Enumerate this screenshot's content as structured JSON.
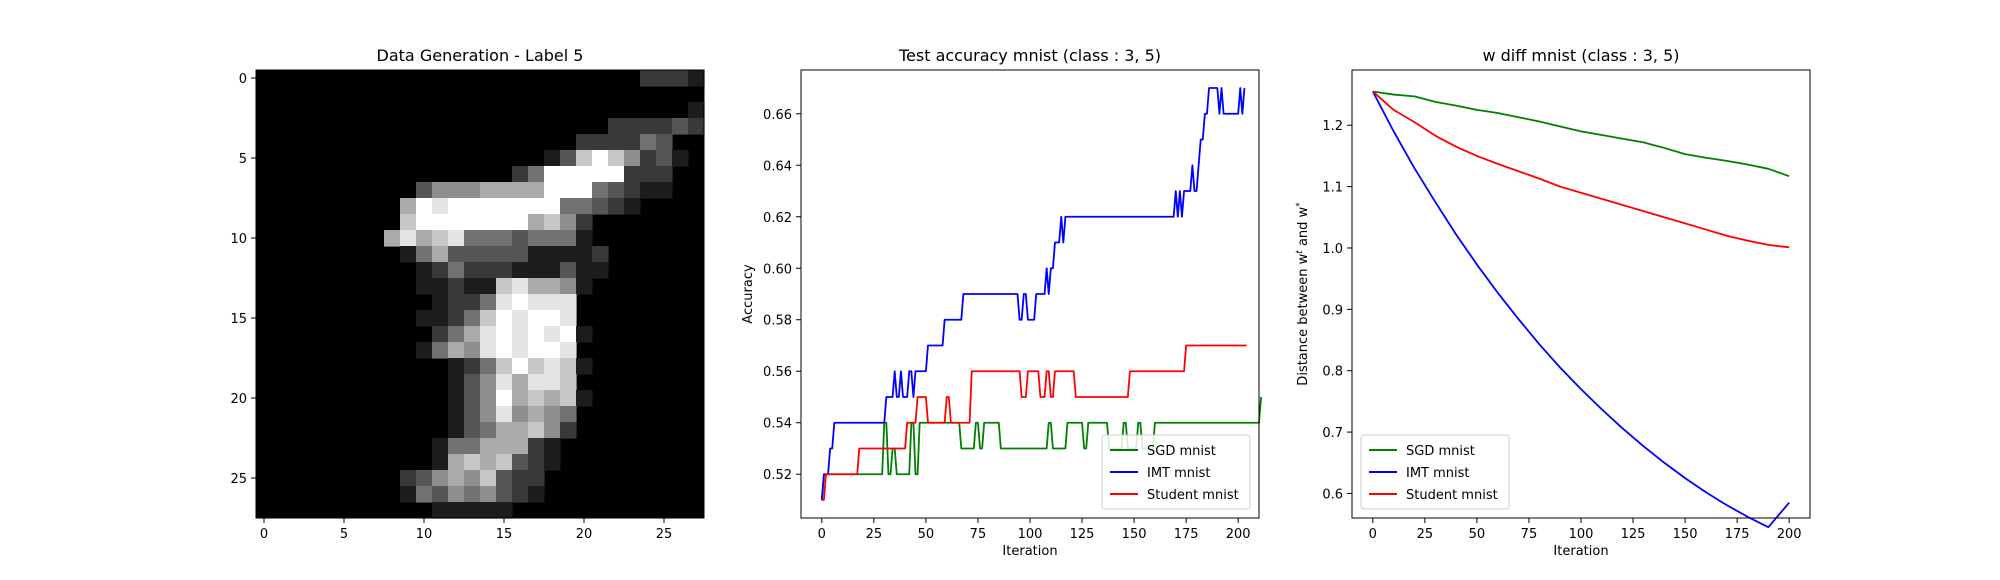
{
  "chart_data": [
    {
      "type": "heatmap",
      "title": "Data Generation - Label 5",
      "colormap": "gray",
      "xlim": [
        -0.5,
        27.5
      ],
      "ylim": [
        27.5,
        -0.5
      ],
      "xticks": [
        0,
        5,
        10,
        15,
        20,
        25
      ],
      "yticks": [
        0,
        5,
        10,
        15,
        20,
        25
      ],
      "image": [
        "0000000000000000000000002221",
        "0000000000000000000000000000",
        "0000000000000000000000000001",
        "0000000000000000000000222232",
        "0000000000000000000022224300",
        "0000000000000000001379752310",
        "0000000000000000249999922200",
        "0000000000355566669994321100",
        "0000000006989999999443210000",
        "0000000007999999967520000000",
        "0000000068678444344410000000",
        "0000000001463333311112000000",
        "0000000000124222111311000000",
        "0000000000112117866510000000",
        "0000000000012248988800000000",
        "0000000000112479899800000000",
        "0000000000024689898910000000",
        "0000000000146589899800000000",
        "0000000000001247978710000000",
        "0000000000001358688700000000",
        "0000000000001359676710000000",
        "0000000000001358565400000000",
        "0000000000001346675200000000",
        "0000000000014466621000000000",
        "0000000000016767321000000000",
        "0000000002356573220000000000",
        "0000000001435453210000000000",
        "0000000000011111000000000000"
      ]
    },
    {
      "type": "line",
      "title": "Test accuracy mnist (class : 3, 5)",
      "xlabel": "Iteration",
      "ylabel": "Accuracy",
      "xlim": [
        -10,
        210
      ],
      "ylim": [
        0.503,
        0.677
      ],
      "xticks": [
        0,
        25,
        50,
        75,
        100,
        125,
        150,
        175,
        200
      ],
      "yticks": [
        0.52,
        0.54,
        0.56,
        0.58,
        0.6,
        0.62,
        0.64,
        0.66
      ],
      "legend": "lower-right",
      "series": [
        {
          "name": "SGD mnist",
          "color": "#008000",
          "values": [
            0.51,
            0.52,
            0.52,
            0.52,
            0.52,
            0.52,
            0.52,
            0.52,
            0.52,
            0.52,
            0.52,
            0.52,
            0.52,
            0.52,
            0.52,
            0.52,
            0.52,
            0.52,
            0.52,
            0.52,
            0.52,
            0.52,
            0.52,
            0.52,
            0.52,
            0.52,
            0.52,
            0.52,
            0.52,
            0.52,
            0.54,
            0.54,
            0.52,
            0.52,
            0.53,
            0.53,
            0.52,
            0.52,
            0.52,
            0.52,
            0.52,
            0.52,
            0.52,
            0.54,
            0.54,
            0.52,
            0.52,
            0.54,
            0.54,
            0.54,
            0.54,
            0.54,
            0.54,
            0.54,
            0.54,
            0.54,
            0.54,
            0.54,
            0.54,
            0.54,
            0.54,
            0.54,
            0.54,
            0.54,
            0.54,
            0.54,
            0.54,
            0.53,
            0.53,
            0.53,
            0.53,
            0.53,
            0.53,
            0.53,
            0.54,
            0.54,
            0.53,
            0.53,
            0.54,
            0.54,
            0.54,
            0.54,
            0.54,
            0.54,
            0.54,
            0.54,
            0.53,
            0.53,
            0.53,
            0.53,
            0.53,
            0.53,
            0.53,
            0.53,
            0.53,
            0.53,
            0.53,
            0.53,
            0.53,
            0.53,
            0.53,
            0.53,
            0.53,
            0.53,
            0.53,
            0.53,
            0.53,
            0.53,
            0.53,
            0.54,
            0.54,
            0.53,
            0.53,
            0.53,
            0.53,
            0.53,
            0.53,
            0.53,
            0.54,
            0.54,
            0.54,
            0.54,
            0.54,
            0.54,
            0.54,
            0.54,
            0.53,
            0.53,
            0.54,
            0.54,
            0.54,
            0.54,
            0.54,
            0.54,
            0.54,
            0.54,
            0.54,
            0.54,
            0.53,
            0.53,
            0.53,
            0.53,
            0.53,
            0.53,
            0.53,
            0.54,
            0.54,
            0.53,
            0.53,
            0.53,
            0.53,
            0.53,
            0.54,
            0.54,
            0.53,
            0.53,
            0.53,
            0.53,
            0.53,
            0.53,
            0.54,
            0.54,
            0.54,
            0.54,
            0.54,
            0.54,
            0.54,
            0.54,
            0.54,
            0.54,
            0.54,
            0.54,
            0.54,
            0.54,
            0.54,
            0.54,
            0.54,
            0.54,
            0.54,
            0.54,
            0.54,
            0.54,
            0.54,
            0.54,
            0.54,
            0.54,
            0.54,
            0.54,
            0.54,
            0.54,
            0.54,
            0.54,
            0.54,
            0.54,
            0.54,
            0.54,
            0.54,
            0.54,
            0.54,
            0.54,
            0.54,
            0.54,
            0.54,
            0.54,
            0.54,
            0.54,
            0.54,
            0.54,
            0.54,
            0.54,
            0.54,
            0.55
          ]
        },
        {
          "name": "IMT mnist",
          "color": "#0000ff",
          "values": [
            0.51,
            0.52,
            0.52,
            0.52,
            0.53,
            0.53,
            0.54,
            0.54,
            0.54,
            0.54,
            0.54,
            0.54,
            0.54,
            0.54,
            0.54,
            0.54,
            0.54,
            0.54,
            0.54,
            0.54,
            0.54,
            0.54,
            0.54,
            0.54,
            0.54,
            0.54,
            0.54,
            0.54,
            0.54,
            0.54,
            0.54,
            0.55,
            0.55,
            0.55,
            0.55,
            0.56,
            0.55,
            0.55,
            0.56,
            0.55,
            0.55,
            0.55,
            0.56,
            0.56,
            0.55,
            0.56,
            0.56,
            0.56,
            0.56,
            0.56,
            0.56,
            0.57,
            0.57,
            0.57,
            0.57,
            0.57,
            0.57,
            0.57,
            0.57,
            0.58,
            0.58,
            0.58,
            0.58,
            0.58,
            0.58,
            0.58,
            0.58,
            0.58,
            0.59,
            0.59,
            0.59,
            0.59,
            0.59,
            0.59,
            0.59,
            0.59,
            0.59,
            0.59,
            0.59,
            0.59,
            0.59,
            0.59,
            0.59,
            0.59,
            0.59,
            0.59,
            0.59,
            0.59,
            0.59,
            0.59,
            0.59,
            0.59,
            0.59,
            0.59,
            0.59,
            0.58,
            0.58,
            0.59,
            0.59,
            0.58,
            0.58,
            0.58,
            0.58,
            0.59,
            0.59,
            0.59,
            0.59,
            0.59,
            0.6,
            0.59,
            0.6,
            0.6,
            0.61,
            0.61,
            0.61,
            0.62,
            0.61,
            0.62,
            0.62,
            0.62,
            0.62,
            0.62,
            0.62,
            0.62,
            0.62,
            0.62,
            0.62,
            0.62,
            0.62,
            0.62,
            0.62,
            0.62,
            0.62,
            0.62,
            0.62,
            0.62,
            0.62,
            0.62,
            0.62,
            0.62,
            0.62,
            0.62,
            0.62,
            0.62,
            0.62,
            0.62,
            0.62,
            0.62,
            0.62,
            0.62,
            0.62,
            0.62,
            0.62,
            0.62,
            0.62,
            0.62,
            0.62,
            0.62,
            0.62,
            0.62,
            0.62,
            0.62,
            0.62,
            0.62,
            0.62,
            0.62,
            0.62,
            0.62,
            0.62,
            0.62,
            0.63,
            0.62,
            0.63,
            0.62,
            0.63,
            0.63,
            0.63,
            0.63,
            0.64,
            0.63,
            0.63,
            0.64,
            0.65,
            0.65,
            0.66,
            0.66,
            0.67,
            0.67,
            0.67,
            0.67,
            0.67,
            0.66,
            0.67,
            0.66,
            0.66,
            0.66,
            0.66,
            0.66,
            0.66,
            0.66,
            0.66,
            0.67,
            0.66,
            0.67
          ]
        },
        {
          "name": "Student mnist",
          "color": "#ff0000",
          "values": [
            0.51,
            0.51,
            0.52,
            0.52,
            0.52,
            0.52,
            0.52,
            0.52,
            0.52,
            0.52,
            0.52,
            0.52,
            0.52,
            0.52,
            0.52,
            0.52,
            0.52,
            0.52,
            0.53,
            0.53,
            0.53,
            0.53,
            0.53,
            0.53,
            0.53,
            0.53,
            0.53,
            0.53,
            0.53,
            0.53,
            0.53,
            0.53,
            0.53,
            0.53,
            0.53,
            0.53,
            0.53,
            0.53,
            0.53,
            0.53,
            0.53,
            0.54,
            0.54,
            0.54,
            0.54,
            0.54,
            0.55,
            0.55,
            0.55,
            0.55,
            0.55,
            0.54,
            0.54,
            0.54,
            0.54,
            0.54,
            0.54,
            0.54,
            0.54,
            0.54,
            0.55,
            0.55,
            0.54,
            0.54,
            0.54,
            0.54,
            0.54,
            0.54,
            0.54,
            0.54,
            0.54,
            0.54,
            0.56,
            0.56,
            0.56,
            0.56,
            0.56,
            0.56,
            0.56,
            0.56,
            0.56,
            0.56,
            0.56,
            0.56,
            0.56,
            0.56,
            0.56,
            0.56,
            0.56,
            0.56,
            0.56,
            0.56,
            0.56,
            0.56,
            0.56,
            0.56,
            0.55,
            0.55,
            0.55,
            0.56,
            0.56,
            0.56,
            0.56,
            0.56,
            0.56,
            0.55,
            0.55,
            0.55,
            0.56,
            0.56,
            0.55,
            0.55,
            0.56,
            0.56,
            0.56,
            0.56,
            0.56,
            0.56,
            0.56,
            0.56,
            0.56,
            0.56,
            0.55,
            0.55,
            0.55,
            0.55,
            0.55,
            0.55,
            0.55,
            0.55,
            0.55,
            0.55,
            0.55,
            0.55,
            0.55,
            0.55,
            0.55,
            0.55,
            0.55,
            0.55,
            0.55,
            0.55,
            0.55,
            0.55,
            0.55,
            0.55,
            0.55,
            0.55,
            0.56,
            0.56,
            0.56,
            0.56,
            0.56,
            0.56,
            0.56,
            0.56,
            0.56,
            0.56,
            0.56,
            0.56,
            0.56,
            0.56,
            0.56,
            0.56,
            0.56,
            0.56,
            0.56,
            0.56,
            0.56,
            0.56,
            0.56,
            0.56,
            0.56,
            0.56,
            0.56,
            0.57,
            0.57,
            0.57,
            0.57,
            0.57,
            0.57,
            0.57,
            0.57,
            0.57,
            0.57,
            0.57,
            0.57,
            0.57,
            0.57,
            0.57,
            0.57,
            0.57,
            0.57,
            0.57,
            0.57,
            0.57,
            0.57,
            0.57,
            0.57,
            0.57,
            0.57,
            0.57,
            0.57,
            0.57,
            0.57
          ]
        }
      ]
    },
    {
      "type": "line",
      "title": "w diff mnist (class : 3, 5)",
      "xlabel": "Iteration",
      "ylabel": "Distance between w^t and w^*",
      "xlim": [
        -10,
        210
      ],
      "ylim": [
        0.56,
        1.29
      ],
      "xticks": [
        0,
        25,
        50,
        75,
        100,
        125,
        150,
        175,
        200
      ],
      "yticks": [
        0.6,
        0.7,
        0.8,
        0.9,
        1.0,
        1.1,
        1.2
      ],
      "legend": "lower-left",
      "series": [
        {
          "name": "SGD mnist",
          "color": "#008000",
          "x": [
            0,
            10,
            20,
            30,
            40,
            50,
            60,
            70,
            80,
            90,
            100,
            110,
            120,
            130,
            140,
            150,
            160,
            170,
            180,
            190,
            200
          ],
          "values": [
            1.255,
            1.25,
            1.247,
            1.238,
            1.232,
            1.225,
            1.22,
            1.213,
            1.206,
            1.198,
            1.19,
            1.184,
            1.178,
            1.172,
            1.163,
            1.153,
            1.147,
            1.142,
            1.136,
            1.129,
            1.117
          ]
        },
        {
          "name": "IMT mnist",
          "color": "#0000ff",
          "x": [
            0,
            10,
            20,
            30,
            40,
            50,
            60,
            70,
            80,
            90,
            100,
            110,
            120,
            130,
            140,
            150,
            160,
            170,
            180,
            190,
            200
          ],
          "values": [
            1.255,
            1.19,
            1.13,
            1.075,
            1.022,
            0.973,
            0.927,
            0.884,
            0.843,
            0.805,
            0.77,
            0.737,
            0.706,
            0.677,
            0.65,
            0.625,
            0.602,
            0.581,
            0.562,
            0.545,
            0.585
          ]
        },
        {
          "name": "Student mnist",
          "color": "#ff0000",
          "x": [
            0,
            10,
            20,
            30,
            40,
            50,
            60,
            70,
            80,
            90,
            100,
            110,
            120,
            130,
            140,
            150,
            160,
            170,
            180,
            190,
            200
          ],
          "values": [
            1.255,
            1.225,
            1.205,
            1.183,
            1.165,
            1.15,
            1.137,
            1.125,
            1.113,
            1.1,
            1.09,
            1.08,
            1.07,
            1.06,
            1.05,
            1.04,
            1.03,
            1.02,
            1.012,
            1.005,
            1.001
          ]
        }
      ]
    }
  ]
}
